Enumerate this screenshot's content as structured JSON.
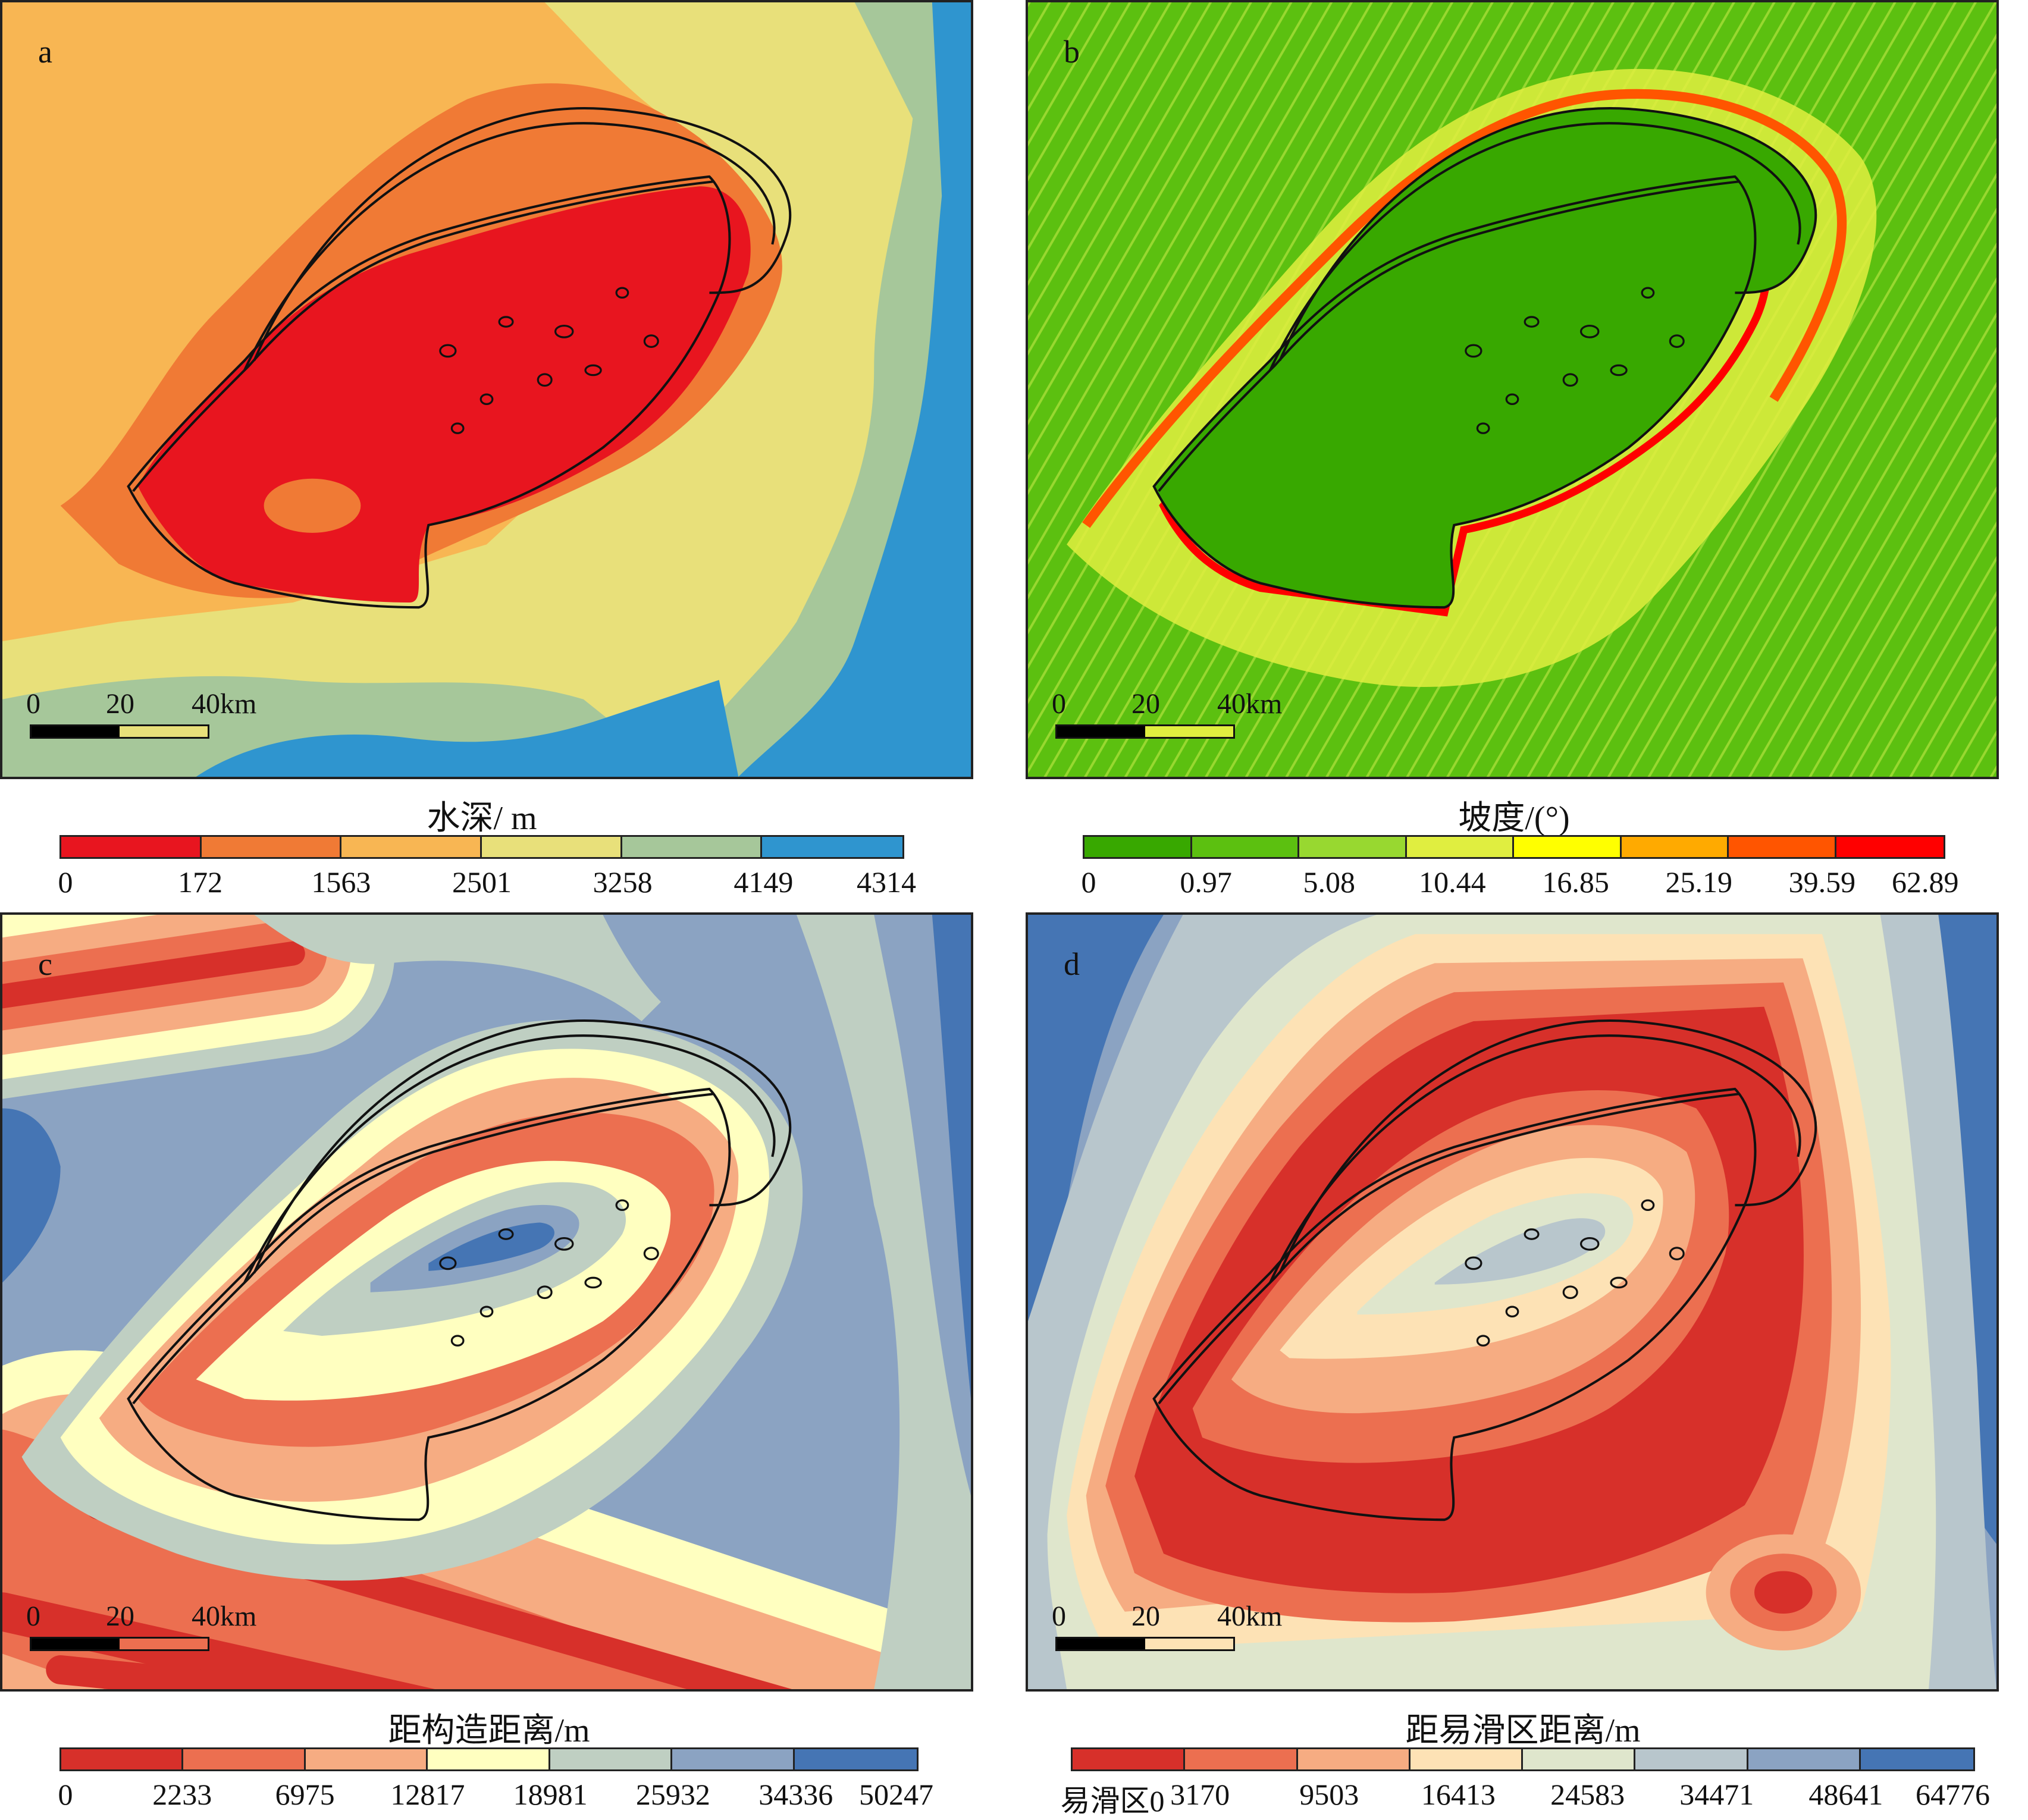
{
  "colors": {
    "outline": "#111111"
  },
  "panels": [
    {
      "id": "a",
      "letter": "a",
      "scale": {
        "l0": "0",
        "l20": "20",
        "l40": "40km"
      },
      "legend": {
        "title": "水深/ m",
        "ticks": [
          "0",
          "172",
          "1563",
          "2501",
          "3258",
          "4149",
          "4314"
        ],
        "colors": [
          "#e8151f",
          "#f07a35",
          "#f8b653",
          "#e8e07a",
          "#a6c79a",
          "#2f95cf"
        ]
      }
    },
    {
      "id": "b",
      "letter": "b",
      "scale": {
        "l0": "0",
        "l20": "20",
        "l40": "40km"
      },
      "legend": {
        "title": "坡度/(°)",
        "ticks": [
          "0",
          "0.97",
          "5.08",
          "10.44",
          "16.85",
          "25.19",
          "39.59",
          "62.89"
        ],
        "colors": [
          "#38a800",
          "#5cc010",
          "#98d830",
          "#e0ee40",
          "#ffff00",
          "#ffaa00",
          "#ff5500",
          "#ff0000"
        ]
      }
    },
    {
      "id": "c",
      "letter": "c",
      "scale": {
        "l0": "0",
        "l20": "20",
        "l40": "40km"
      },
      "legend": {
        "title": "距构造距离/m",
        "ticks": [
          "0",
          "2233",
          "6975",
          "12817",
          "18981",
          "25932",
          "34336",
          "50247"
        ],
        "colors": [
          "#d7302a",
          "#ec6f50",
          "#f6ac82",
          "#ffffc0",
          "#bfcfc2",
          "#8ba3c2",
          "#4575b4"
        ]
      }
    },
    {
      "id": "d",
      "letter": "d",
      "scale": {
        "l0": "0",
        "l20": "20",
        "l40": "40km"
      },
      "legend": {
        "title": "距易滑区距离/m",
        "ticks": [
          "易滑区0",
          "3170",
          "9503",
          "16413",
          "24583",
          "34471",
          "48641",
          "64776"
        ],
        "colors": [
          "#d7302a",
          "#ec6f50",
          "#f6ac82",
          "#fde2b5",
          "#dfe6cc",
          "#b8c6cc",
          "#8ba3c2",
          "#4575b4"
        ]
      }
    }
  ]
}
